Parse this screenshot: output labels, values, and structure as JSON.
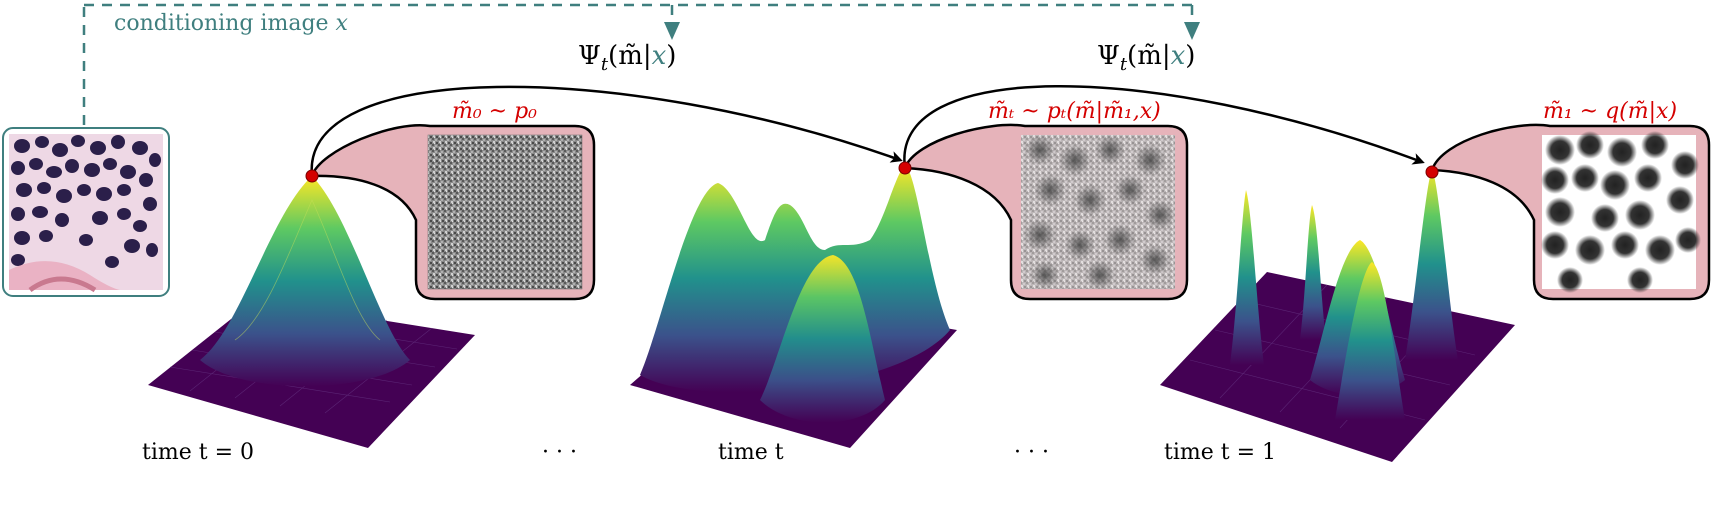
{
  "conditioning": {
    "label_text": "conditioning image ",
    "label_var": "x",
    "color": "#3f7f7f"
  },
  "flow": {
    "label_1": "Ψ",
    "label_2": "Ψ",
    "sub": "t",
    "arg_main": "(m̃|",
    "arg_var": "x",
    "arg_close": ")"
  },
  "distributions": {
    "d0": "m̃₀ ~ p₀",
    "dt": "m̃ₜ ~ pₜ(m̃|m̃₁,x)",
    "d1": "m̃₁ ~ q(m̃|x)",
    "color": "#d40000"
  },
  "times": {
    "t0": "time t = 0",
    "dots1": "· · ·",
    "tt": "time t",
    "dots2": "· · ·",
    "t1": "time t = 1"
  },
  "colors": {
    "callout_fill": "#e6b3ba",
    "peak_dot": "#d40000",
    "surface_low": "#440154",
    "surface_mid": "#21918c",
    "surface_high": "#fde725"
  }
}
